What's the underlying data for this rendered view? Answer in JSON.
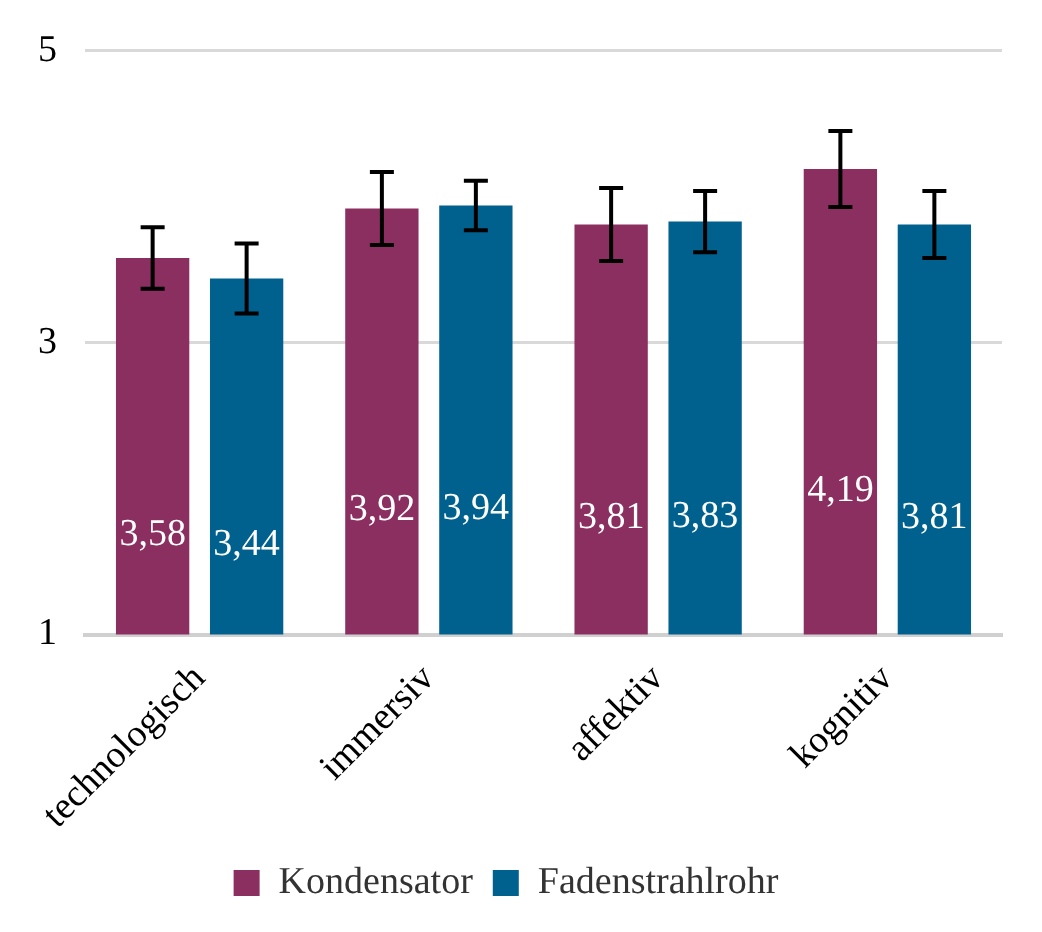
{
  "chart_data": {
    "type": "bar",
    "categories": [
      "technologisch",
      "immersiv",
      "affektiv",
      "kognitiv"
    ],
    "series": [
      {
        "name": "Kondensator",
        "color": "#8b2e60",
        "values": [
          3.58,
          3.92,
          3.81,
          4.19
        ],
        "value_labels": [
          "3,58",
          "3,92",
          "3,81",
          "4,19"
        ],
        "errors": [
          0.21,
          0.25,
          0.25,
          0.26
        ]
      },
      {
        "name": "Fadenstrahlrohr",
        "color": "#00618e",
        "values": [
          3.44,
          3.94,
          3.83,
          3.81
        ],
        "value_labels": [
          "3,44",
          "3,94",
          "3,83",
          "3,81"
        ],
        "errors": [
          0.24,
          0.17,
          0.21,
          0.23
        ]
      }
    ],
    "ylim": [
      1,
      5
    ],
    "yticks": [
      1,
      3,
      5
    ],
    "grid": "y",
    "legend": "bottom"
  }
}
